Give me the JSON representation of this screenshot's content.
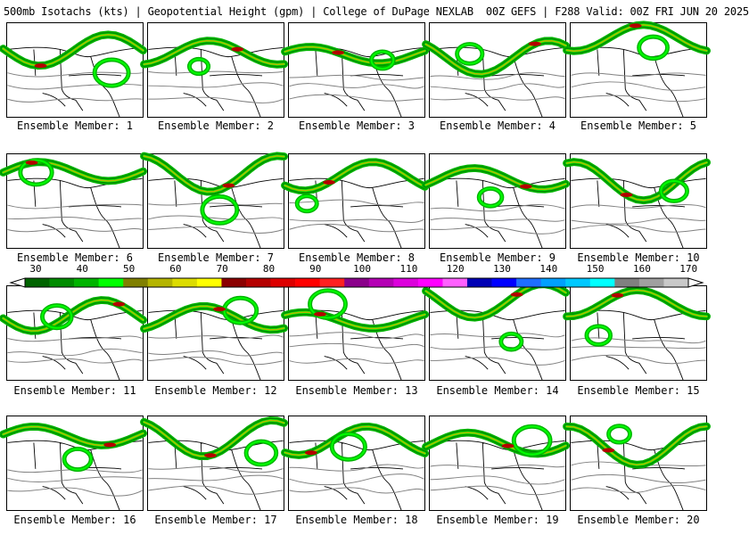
{
  "header": {
    "title": "500mb Isotachs (kts) | Geopotential Height (gpm) | College of DuPage NEXLAB",
    "run": "00Z GEFS | F288 Valid: 00Z FRI JUN 20 2025"
  },
  "members": [
    {
      "label": "Ensemble Member: 1"
    },
    {
      "label": "Ensemble Member: 2"
    },
    {
      "label": "Ensemble Member: 3"
    },
    {
      "label": "Ensemble Member: 4"
    },
    {
      "label": "Ensemble Member: 5"
    },
    {
      "label": "Ensemble Member: 6"
    },
    {
      "label": "Ensemble Member: 7"
    },
    {
      "label": "Ensemble Member: 8"
    },
    {
      "label": "Ensemble Member: 9"
    },
    {
      "label": "Ensemble Member: 10"
    },
    {
      "label": "Ensemble Member: 11"
    },
    {
      "label": "Ensemble Member: 12"
    },
    {
      "label": "Ensemble Member: 13"
    },
    {
      "label": "Ensemble Member: 14"
    },
    {
      "label": "Ensemble Member: 15"
    },
    {
      "label": "Ensemble Member: 16"
    },
    {
      "label": "Ensemble Member: 17"
    },
    {
      "label": "Ensemble Member: 18"
    },
    {
      "label": "Ensemble Member: 19"
    },
    {
      "label": "Ensemble Member: 20"
    }
  ],
  "colorbar": {
    "labels": [
      "30",
      "40",
      "50",
      "60",
      "70",
      "80",
      "90",
      "100",
      "110",
      "120",
      "130",
      "140",
      "150",
      "160",
      "170"
    ],
    "colors": [
      "#006400",
      "#008c00",
      "#00b400",
      "#00ff00",
      "#808000",
      "#b4b400",
      "#dcdc00",
      "#ffff00",
      "#8b0000",
      "#b40000",
      "#dc0000",
      "#ff0000",
      "#ff2020",
      "#8b008b",
      "#b400b4",
      "#dc00dc",
      "#ff00ff",
      "#ff60ff",
      "#0000b4",
      "#0000ff",
      "#1e6eff",
      "#00a0ff",
      "#00c8ff",
      "#00ffff",
      "#808080",
      "#a0a0a0",
      "#c8c8c8"
    ]
  }
}
